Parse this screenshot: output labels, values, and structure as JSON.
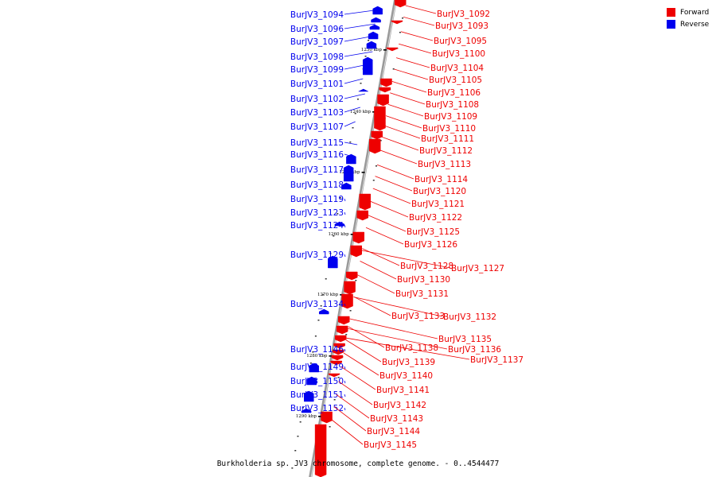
{
  "caption": "Burkholderia sp. JV3 chromosome, complete genome. - 0..4544477",
  "legend": [
    {
      "label": "Forward",
      "color": "#ee0000"
    },
    {
      "label": "Reverse",
      "color": "#0000ee"
    }
  ],
  "colors": {
    "forward": "#ee0000",
    "reverse": "#0000ee",
    "backbone": "#999999"
  },
  "ticks": [
    "1230 kbp",
    "1240 kbp",
    "1250 kbp",
    "1260 kbp",
    "1270 kbp",
    "1280 kbp",
    "1290 kbp"
  ],
  "reverse_genes": [
    "BurJV3_1094",
    "BurJV3_1096",
    "BurJV3_1097",
    "BurJV3_1098",
    "BurJV3_1099",
    "BurJV3_1101",
    "BurJV3_1102",
    "BurJV3_1103",
    "BurJV3_1107",
    "BurJV3_1115",
    "BurJV3_1116",
    "BurJV3_1117",
    "BurJV3_1118",
    "BurJV3_1119",
    "BurJV3_1123",
    "BurJV3_1124",
    "BurJV3_1129",
    "BurJV3_1134",
    "BurJV3_1146",
    "BurJV3_1149",
    "BurJV3_1150",
    "BurJV3_1151",
    "BurJV3_1152"
  ],
  "forward_genes": [
    "BurJV3_1092",
    "BurJV3_1093",
    "BurJV3_1095",
    "BurJV3_1100",
    "BurJV3_1104",
    "BurJV3_1105",
    "BurJV3_1106",
    "BurJV3_1108",
    "BurJV3_1109",
    "BurJV3_1110",
    "BurJV3_1111",
    "BurJV3_1112",
    "BurJV3_1113",
    "BurJV3_1114",
    "BurJV3_1120",
    "BurJV3_1121",
    "BurJV3_1122",
    "BurJV3_1125",
    "BurJV3_1126",
    "BurJV3_1128",
    "BurJV3_1127",
    "BurJV3_1130",
    "BurJV3_1131",
    "BurJV3_1133",
    "BurJV3_1132",
    "BurJV3_1135",
    "BurJV3_1136",
    "BurJV3_1138",
    "BurJV3_1137",
    "BurJV3_1139",
    "BurJV3_1140",
    "BurJV3_1141",
    "BurJV3_1142",
    "BurJV3_1143",
    "BurJV3_1144",
    "BurJV3_1145"
  ]
}
